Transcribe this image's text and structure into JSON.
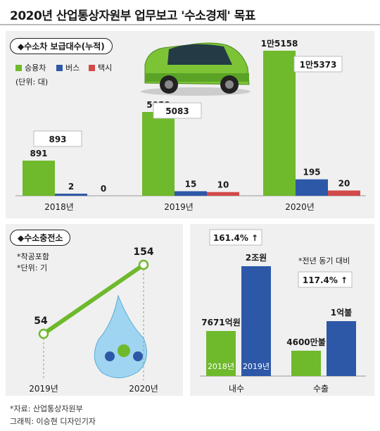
{
  "title": "2020년 산업통상자원부 업무보고 '수소경제' 목표",
  "colors": {
    "green": "#6fb92c",
    "blue": "#2d58a8",
    "red": "#d24a4a",
    "panel": "#f0f0f0"
  },
  "vehicles": {
    "heading": "◆수소차 보급대수(누적)",
    "legend": [
      "승용차",
      "버스",
      "택시"
    ],
    "unit": "(단위: 대)",
    "totals": [
      "893",
      "5083",
      "1만5373"
    ]
  },
  "stations": {
    "heading": "◆수소충전소",
    "notes": [
      "*착공포함",
      "*단위: 기"
    ]
  },
  "exports": {
    "growth_domestic": "161.4% ↑",
    "growth_export": "117.4% ↑",
    "note": "*전년 동기 대비",
    "year_labels": [
      "2018년",
      "2019년"
    ]
  },
  "chart_data": [
    {
      "type": "bar",
      "title": "수소차 보급대수(누적)",
      "categories": [
        "2018년",
        "2019년",
        "2020년"
      ],
      "series": [
        {
          "name": "승용차",
          "values": [
            891,
            5058,
            15158
          ],
          "labels": [
            "891",
            "5058",
            "1만5158"
          ]
        },
        {
          "name": "버스",
          "values": [
            2,
            15,
            195
          ],
          "labels": [
            "2",
            "15",
            "195"
          ]
        },
        {
          "name": "택시",
          "values": [
            0,
            10,
            20
          ],
          "labels": [
            "0",
            "10",
            "20"
          ]
        }
      ]
    },
    {
      "type": "line",
      "title": "수소충전소",
      "x": [
        "2019년",
        "2020년"
      ],
      "series": [
        {
          "values": [
            54,
            154
          ],
          "labels": [
            "54",
            "154"
          ]
        }
      ]
    },
    {
      "type": "bar",
      "categories": [
        "내수",
        "수출"
      ],
      "series": [
        {
          "name": "2018년",
          "values": [
            7671,
            4600
          ],
          "labels": [
            "7671억원",
            "4600만불"
          ]
        },
        {
          "name": "2019년",
          "values": [
            20000,
            10000
          ],
          "labels": [
            "2조원",
            "1억불"
          ]
        }
      ]
    }
  ],
  "footer": {
    "source": "*자료: 산업통상자원부",
    "credit": "그래픽: 이승현 디자인기자"
  }
}
